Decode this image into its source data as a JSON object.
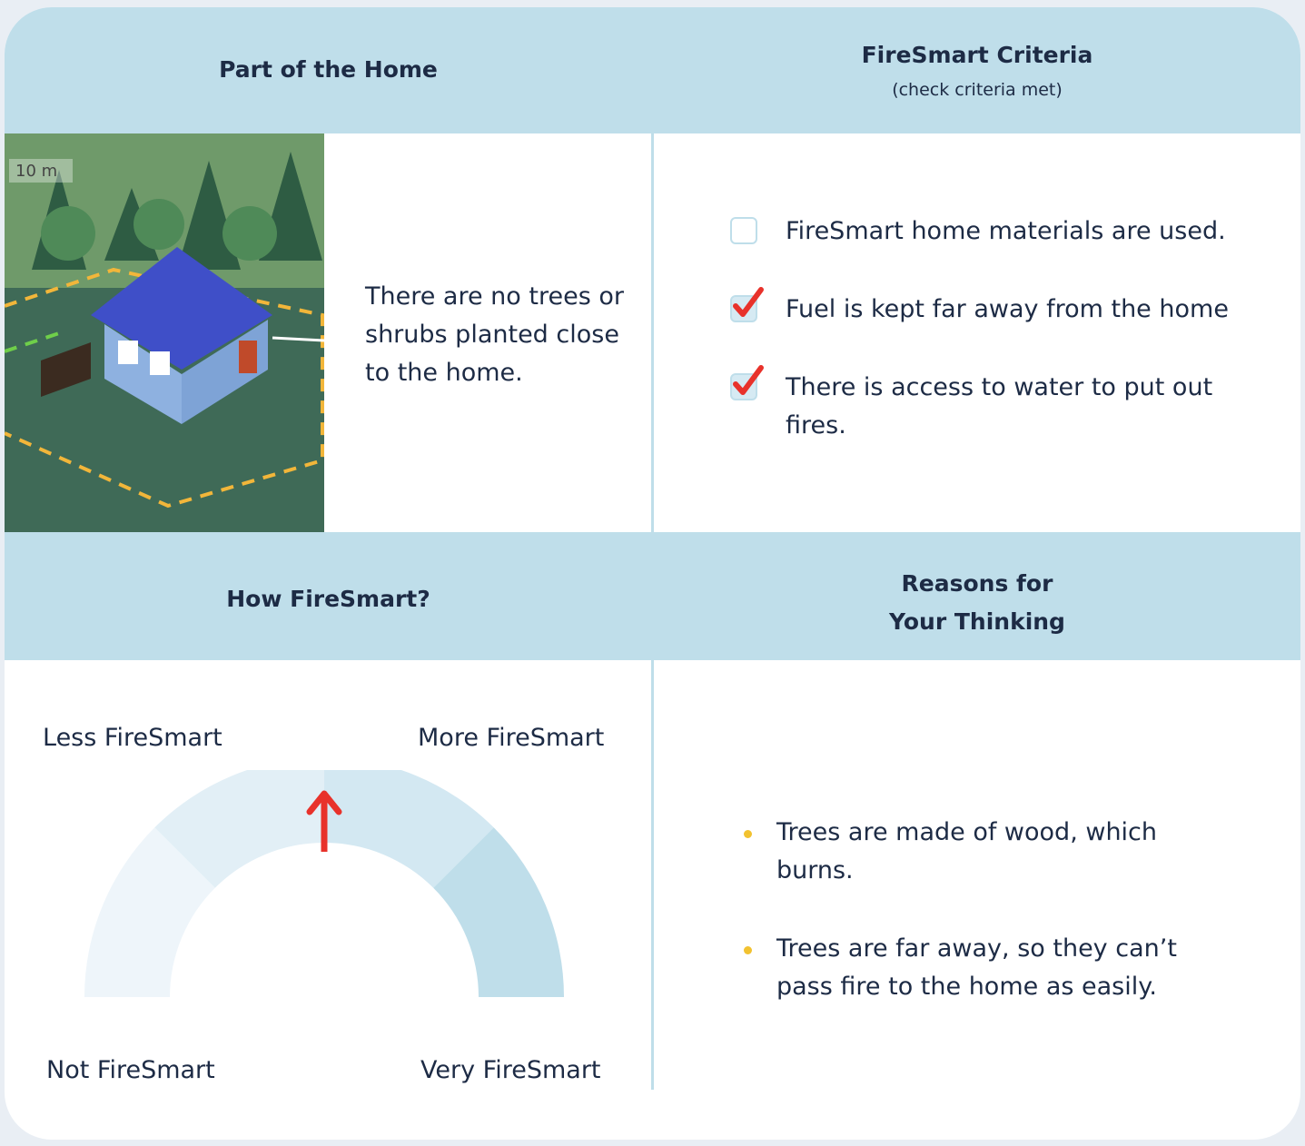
{
  "header": {
    "part": "Part of the Home",
    "criteria_title": "FireSmart Criteria",
    "criteria_note": "(check criteria met)"
  },
  "image": {
    "label": "10 m"
  },
  "description": "There are no trees or shrubs planted close to the home.",
  "criteria": [
    {
      "text": "FireSmart home materials are used.",
      "checked": false
    },
    {
      "text": "Fuel is kept far away from the home",
      "checked": true
    },
    {
      "text": "There is access to water to put out fires.",
      "checked": true
    }
  ],
  "section2": {
    "how": "How FireSmart?",
    "reasons_title": [
      "Reasons for",
      "Your Thinking"
    ]
  },
  "gauge": {
    "top_left": "Less FireSmart",
    "top_right": "More FireSmart",
    "bottom_left": "Not FireSmart",
    "bottom_right": "Very FireSmart"
  },
  "reasons": [
    "Trees are made of wood, which burns.",
    "Trees are far away, so they can’t pass fire to the home as easily."
  ]
}
